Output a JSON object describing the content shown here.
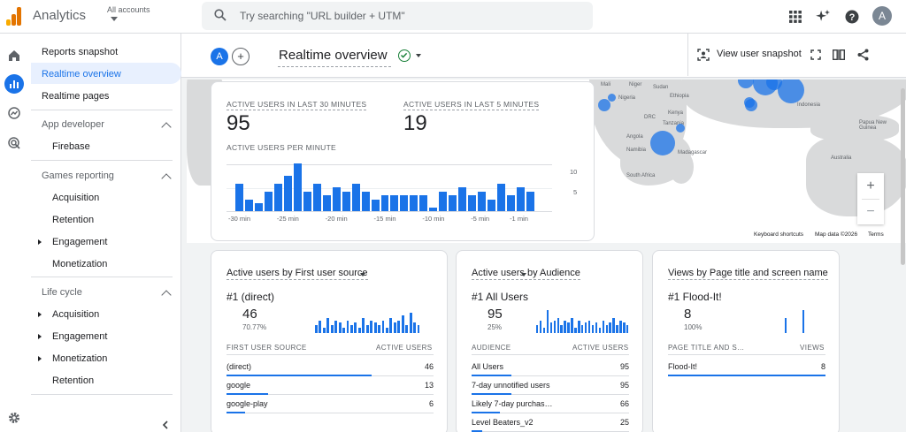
{
  "topbar": {
    "product": "Analytics",
    "accounts_label": "All accounts",
    "search_placeholder": "Try searching \"URL builder + UTM\"",
    "avatar": "A"
  },
  "nav": {
    "reports_snapshot": "Reports snapshot",
    "realtime_overview": "Realtime overview",
    "realtime_pages": "Realtime pages",
    "app_developer": "App developer",
    "firebase": "Firebase",
    "games_reporting": "Games reporting",
    "games_items": [
      "Acquisition",
      "Retention",
      "Engagement",
      "Monetization"
    ],
    "life_cycle": "Life cycle",
    "life_items": [
      "Acquisition",
      "Engagement",
      "Monetization",
      "Retention"
    ]
  },
  "header": {
    "compare_avatar": "A",
    "add": "+",
    "title": "Realtime overview",
    "view_snapshot": "View user snapshot"
  },
  "map": {
    "labels": [
      "Mali",
      "Niger",
      "Sudan",
      "Ethiopia",
      "Nigeria",
      "DRC",
      "Kenya",
      "Tanzania",
      "Angola",
      "Namibia",
      "Madagascar",
      "South Africa",
      "Papua New Guinea",
      "Australia",
      "Indonesia"
    ],
    "zoom_in": "+",
    "zoom_out": "−",
    "footer": [
      "Keyboard shortcuts",
      "Map data ©2026",
      "Terms"
    ]
  },
  "summary": {
    "label_30": "ACTIVE USERS IN LAST 30 MINUTES",
    "value_30": "95",
    "label_5": "ACTIVE USERS IN LAST 5 MINUTES",
    "value_5": "19",
    "per_minute_label": "ACTIVE USERS PER MINUTE",
    "x_ticks": [
      "-30 min",
      "-25 min",
      "-20 min",
      "-15 min",
      "-10 min",
      "-5 min",
      "-1 min"
    ],
    "y_ticks": [
      "10",
      "5"
    ],
    "per_minute_values": [
      7,
      3,
      2,
      5,
      7,
      9,
      12,
      5,
      7,
      4,
      6,
      5,
      7,
      5,
      3,
      4,
      4,
      4,
      4,
      4,
      1,
      5,
      4,
      6,
      4,
      5,
      3,
      7,
      4,
      6,
      5
    ]
  },
  "card_source": {
    "title": "Active users by First user source",
    "rank": "#1  (direct)",
    "value": "46",
    "pct": "70.77%",
    "col1": "FIRST USER SOURCE",
    "col2": "ACTIVE USERS",
    "rows": [
      {
        "name": "(direct)",
        "value": "46",
        "fill": 0.7
      },
      {
        "name": "google",
        "value": "13",
        "fill": 0.2
      },
      {
        "name": "google-play",
        "value": "6",
        "fill": 0.09
      }
    ]
  },
  "card_audience": {
    "title": "Active users by Audience",
    "rank": "#1  All Users",
    "value": "95",
    "pct": "25%",
    "col1": "AUDIENCE",
    "col2": "ACTIVE USERS",
    "rows": [
      {
        "name": "All Users",
        "value": "95",
        "fill": 0.25
      },
      {
        "name": "7-day unnotified users",
        "value": "95",
        "fill": 0.25
      },
      {
        "name": "Likely 7-day purchas…",
        "value": "66",
        "fill": 0.18
      },
      {
        "name": "Level Beaters_v2",
        "value": "25",
        "fill": 0.07
      }
    ]
  },
  "card_pages": {
    "title": "Views by Page title and screen name",
    "rank": "#1  Flood-It!",
    "value": "8",
    "pct": "100%",
    "col1": "PAGE TITLE AND S…",
    "col2": "VIEWS",
    "rows": [
      {
        "name": "Flood-It!",
        "value": "8",
        "fill": 1.0
      }
    ]
  },
  "colors": {
    "accent": "#1a73e8",
    "bar": "#1a73e8",
    "nav_selected": "#e8f0fe"
  }
}
